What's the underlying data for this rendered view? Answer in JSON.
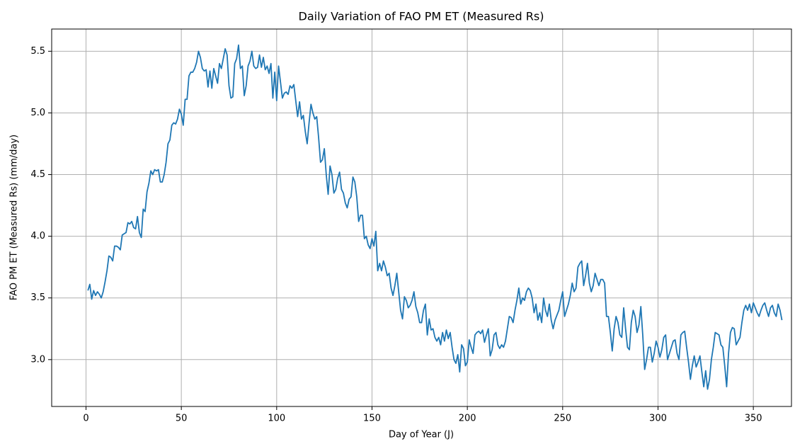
{
  "chart_data": {
    "type": "line",
    "title": "Daily Variation of FAO PM ET (Measured Rs)",
    "xlabel": "Day of Year (J)",
    "ylabel": "FAO PM ET (Measured Rs) (mm/day)",
    "x": [
      1,
      2,
      3,
      4,
      5,
      6,
      7,
      8,
      9,
      10,
      11,
      12,
      13,
      14,
      15,
      16,
      17,
      18,
      19,
      20,
      21,
      22,
      23,
      24,
      25,
      26,
      27,
      28,
      29,
      30,
      31,
      32,
      33,
      34,
      35,
      36,
      37,
      38,
      39,
      40,
      41,
      42,
      43,
      44,
      45,
      46,
      47,
      48,
      49,
      50,
      51,
      52,
      53,
      54,
      55,
      56,
      57,
      58,
      59,
      60,
      61,
      62,
      63,
      64,
      65,
      66,
      67,
      68,
      69,
      70,
      71,
      72,
      73,
      74,
      75,
      76,
      77,
      78,
      79,
      80,
      81,
      82,
      83,
      84,
      85,
      86,
      87,
      88,
      89,
      90,
      91,
      92,
      93,
      94,
      95,
      96,
      97,
      98,
      99,
      100,
      101,
      102,
      103,
      104,
      105,
      106,
      107,
      108,
      109,
      110,
      111,
      112,
      113,
      114,
      115,
      116,
      117,
      118,
      119,
      120,
      121,
      122,
      123,
      124,
      125,
      126,
      127,
      128,
      129,
      130,
      131,
      132,
      133,
      134,
      135,
      136,
      137,
      138,
      139,
      140,
      141,
      142,
      143,
      144,
      145,
      146,
      147,
      148,
      149,
      150,
      151,
      152,
      153,
      154,
      155,
      156,
      157,
      158,
      159,
      160,
      161,
      162,
      163,
      164,
      165,
      166,
      167,
      168,
      169,
      170,
      171,
      172,
      173,
      174,
      175,
      176,
      177,
      178,
      179,
      180,
      181,
      182,
      183,
      184,
      185,
      186,
      187,
      188,
      189,
      190,
      191,
      192,
      193,
      194,
      195,
      196,
      197,
      198,
      199,
      200,
      201,
      202,
      203,
      204,
      205,
      206,
      207,
      208,
      209,
      210,
      211,
      212,
      213,
      214,
      215,
      216,
      217,
      218,
      219,
      220,
      221,
      222,
      223,
      224,
      225,
      226,
      227,
      228,
      229,
      230,
      231,
      232,
      233,
      234,
      235,
      236,
      237,
      238,
      239,
      240,
      241,
      242,
      243,
      244,
      245,
      246,
      247,
      248,
      249,
      250,
      251,
      252,
      253,
      254,
      255,
      256,
      257,
      258,
      259,
      260,
      261,
      262,
      263,
      264,
      265,
      266,
      267,
      268,
      269,
      270,
      271,
      272,
      273,
      274,
      275,
      276,
      277,
      278,
      279,
      280,
      281,
      282,
      283,
      284,
      285,
      286,
      287,
      288,
      289,
      290,
      291,
      292,
      293,
      294,
      295,
      296,
      297,
      298,
      299,
      300,
      301,
      302,
      303,
      304,
      305,
      306,
      307,
      308,
      309,
      310,
      311,
      312,
      313,
      314,
      315,
      316,
      317,
      318,
      319,
      320,
      321,
      322,
      323,
      324,
      325,
      326,
      327,
      328,
      329,
      330,
      331,
      332,
      333,
      334,
      335,
      336,
      337,
      338,
      339,
      340,
      341,
      342,
      343,
      344,
      345,
      346,
      347,
      348,
      349,
      350,
      351,
      352,
      353,
      354,
      355,
      356,
      357,
      358,
      359,
      360,
      361,
      362,
      363,
      364,
      365
    ],
    "series": [
      {
        "color": "#1f77b4",
        "values": [
          3.56,
          3.61,
          3.49,
          3.56,
          3.52,
          3.55,
          3.53,
          3.5,
          3.55,
          3.63,
          3.72,
          3.84,
          3.83,
          3.8,
          3.92,
          3.92,
          3.91,
          3.89,
          4.01,
          4.02,
          4.03,
          4.11,
          4.1,
          4.12,
          4.07,
          4.06,
          4.16,
          4.03,
          3.99,
          4.22,
          4.2,
          4.36,
          4.43,
          4.53,
          4.5,
          4.54,
          4.53,
          4.54,
          4.44,
          4.44,
          4.5,
          4.6,
          4.75,
          4.78,
          4.9,
          4.92,
          4.91,
          4.95,
          5.03,
          4.99,
          4.9,
          5.11,
          5.11,
          5.3,
          5.33,
          5.33,
          5.36,
          5.41,
          5.5,
          5.45,
          5.36,
          5.34,
          5.35,
          5.21,
          5.34,
          5.2,
          5.36,
          5.3,
          5.24,
          5.4,
          5.36,
          5.44,
          5.52,
          5.47,
          5.22,
          5.12,
          5.13,
          5.4,
          5.44,
          5.55,
          5.36,
          5.38,
          5.14,
          5.22,
          5.38,
          5.42,
          5.5,
          5.38,
          5.36,
          5.37,
          5.47,
          5.37,
          5.45,
          5.35,
          5.38,
          5.32,
          5.4,
          5.12,
          5.33,
          5.1,
          5.38,
          5.25,
          5.12,
          5.16,
          5.17,
          5.15,
          5.22,
          5.2,
          5.23,
          5.1,
          4.97,
          5.09,
          4.95,
          4.98,
          4.85,
          4.75,
          4.92,
          5.07,
          5.0,
          4.95,
          4.97,
          4.8,
          4.6,
          4.62,
          4.71,
          4.5,
          4.34,
          4.57,
          4.5,
          4.35,
          4.38,
          4.47,
          4.52,
          4.38,
          4.35,
          4.27,
          4.23,
          4.3,
          4.32,
          4.48,
          4.44,
          4.32,
          4.12,
          4.17,
          4.17,
          3.98,
          4.0,
          3.93,
          3.9,
          3.98,
          3.92,
          4.04,
          3.72,
          3.78,
          3.72,
          3.8,
          3.75,
          3.68,
          3.7,
          3.58,
          3.52,
          3.6,
          3.7,
          3.55,
          3.4,
          3.33,
          3.51,
          3.48,
          3.42,
          3.44,
          3.48,
          3.55,
          3.43,
          3.38,
          3.3,
          3.3,
          3.4,
          3.45,
          3.2,
          3.33,
          3.24,
          3.25,
          3.18,
          3.15,
          3.18,
          3.12,
          3.22,
          3.15,
          3.24,
          3.17,
          3.22,
          3.1,
          3.0,
          2.97,
          3.04,
          2.9,
          3.12,
          3.09,
          2.95,
          2.98,
          3.16,
          3.1,
          3.05,
          3.2,
          3.22,
          3.23,
          3.21,
          3.24,
          3.14,
          3.2,
          3.25,
          3.03,
          3.08,
          3.2,
          3.22,
          3.12,
          3.09,
          3.12,
          3.1,
          3.15,
          3.25,
          3.35,
          3.34,
          3.3,
          3.4,
          3.48,
          3.58,
          3.45,
          3.5,
          3.48,
          3.55,
          3.58,
          3.56,
          3.5,
          3.38,
          3.45,
          3.32,
          3.38,
          3.3,
          3.5,
          3.4,
          3.35,
          3.45,
          3.32,
          3.25,
          3.32,
          3.36,
          3.4,
          3.48,
          3.55,
          3.35,
          3.4,
          3.45,
          3.52,
          3.62,
          3.55,
          3.58,
          3.75,
          3.78,
          3.8,
          3.6,
          3.68,
          3.78,
          3.62,
          3.55,
          3.6,
          3.7,
          3.65,
          3.6,
          3.65,
          3.65,
          3.62,
          3.35,
          3.35,
          3.22,
          3.07,
          3.25,
          3.35,
          3.3,
          3.2,
          3.18,
          3.42,
          3.25,
          3.1,
          3.08,
          3.3,
          3.4,
          3.35,
          3.22,
          3.28,
          3.43,
          3.2,
          2.92,
          3.0,
          3.1,
          3.1,
          2.98,
          3.05,
          3.15,
          3.1,
          3.02,
          3.08,
          3.18,
          3.2,
          3.0,
          3.05,
          3.1,
          3.15,
          3.16,
          3.05,
          3.0,
          3.2,
          3.22,
          3.23,
          3.1,
          2.98,
          2.84,
          2.95,
          3.03,
          2.94,
          2.98,
          3.03,
          2.9,
          2.78,
          2.91,
          2.76,
          2.84,
          3.0,
          3.1,
          3.22,
          3.21,
          3.2,
          3.12,
          3.1,
          2.95,
          2.78,
          3.05,
          3.22,
          3.26,
          3.25,
          3.12,
          3.15,
          3.18,
          3.3,
          3.4,
          3.44,
          3.4,
          3.45,
          3.38,
          3.46,
          3.42,
          3.38,
          3.35,
          3.4,
          3.44,
          3.46,
          3.4,
          3.35,
          3.42,
          3.44,
          3.38,
          3.35,
          3.45,
          3.4,
          3.32
        ]
      }
    ],
    "xlim": [
      -18,
      370
    ],
    "xticks": [
      0,
      50,
      100,
      150,
      200,
      250,
      300,
      350
    ],
    "ylim": [
      2.62,
      5.68
    ],
    "yticks": [
      {
        "value": 3.0,
        "label": "3.0"
      },
      {
        "value": 3.5,
        "label": "3.5"
      },
      {
        "value": 4.0,
        "label": "4.0"
      },
      {
        "value": 4.5,
        "label": "4.5"
      },
      {
        "value": 5.0,
        "label": "5.0"
      },
      {
        "value": 5.5,
        "label": "5.5"
      }
    ],
    "grid": true
  }
}
